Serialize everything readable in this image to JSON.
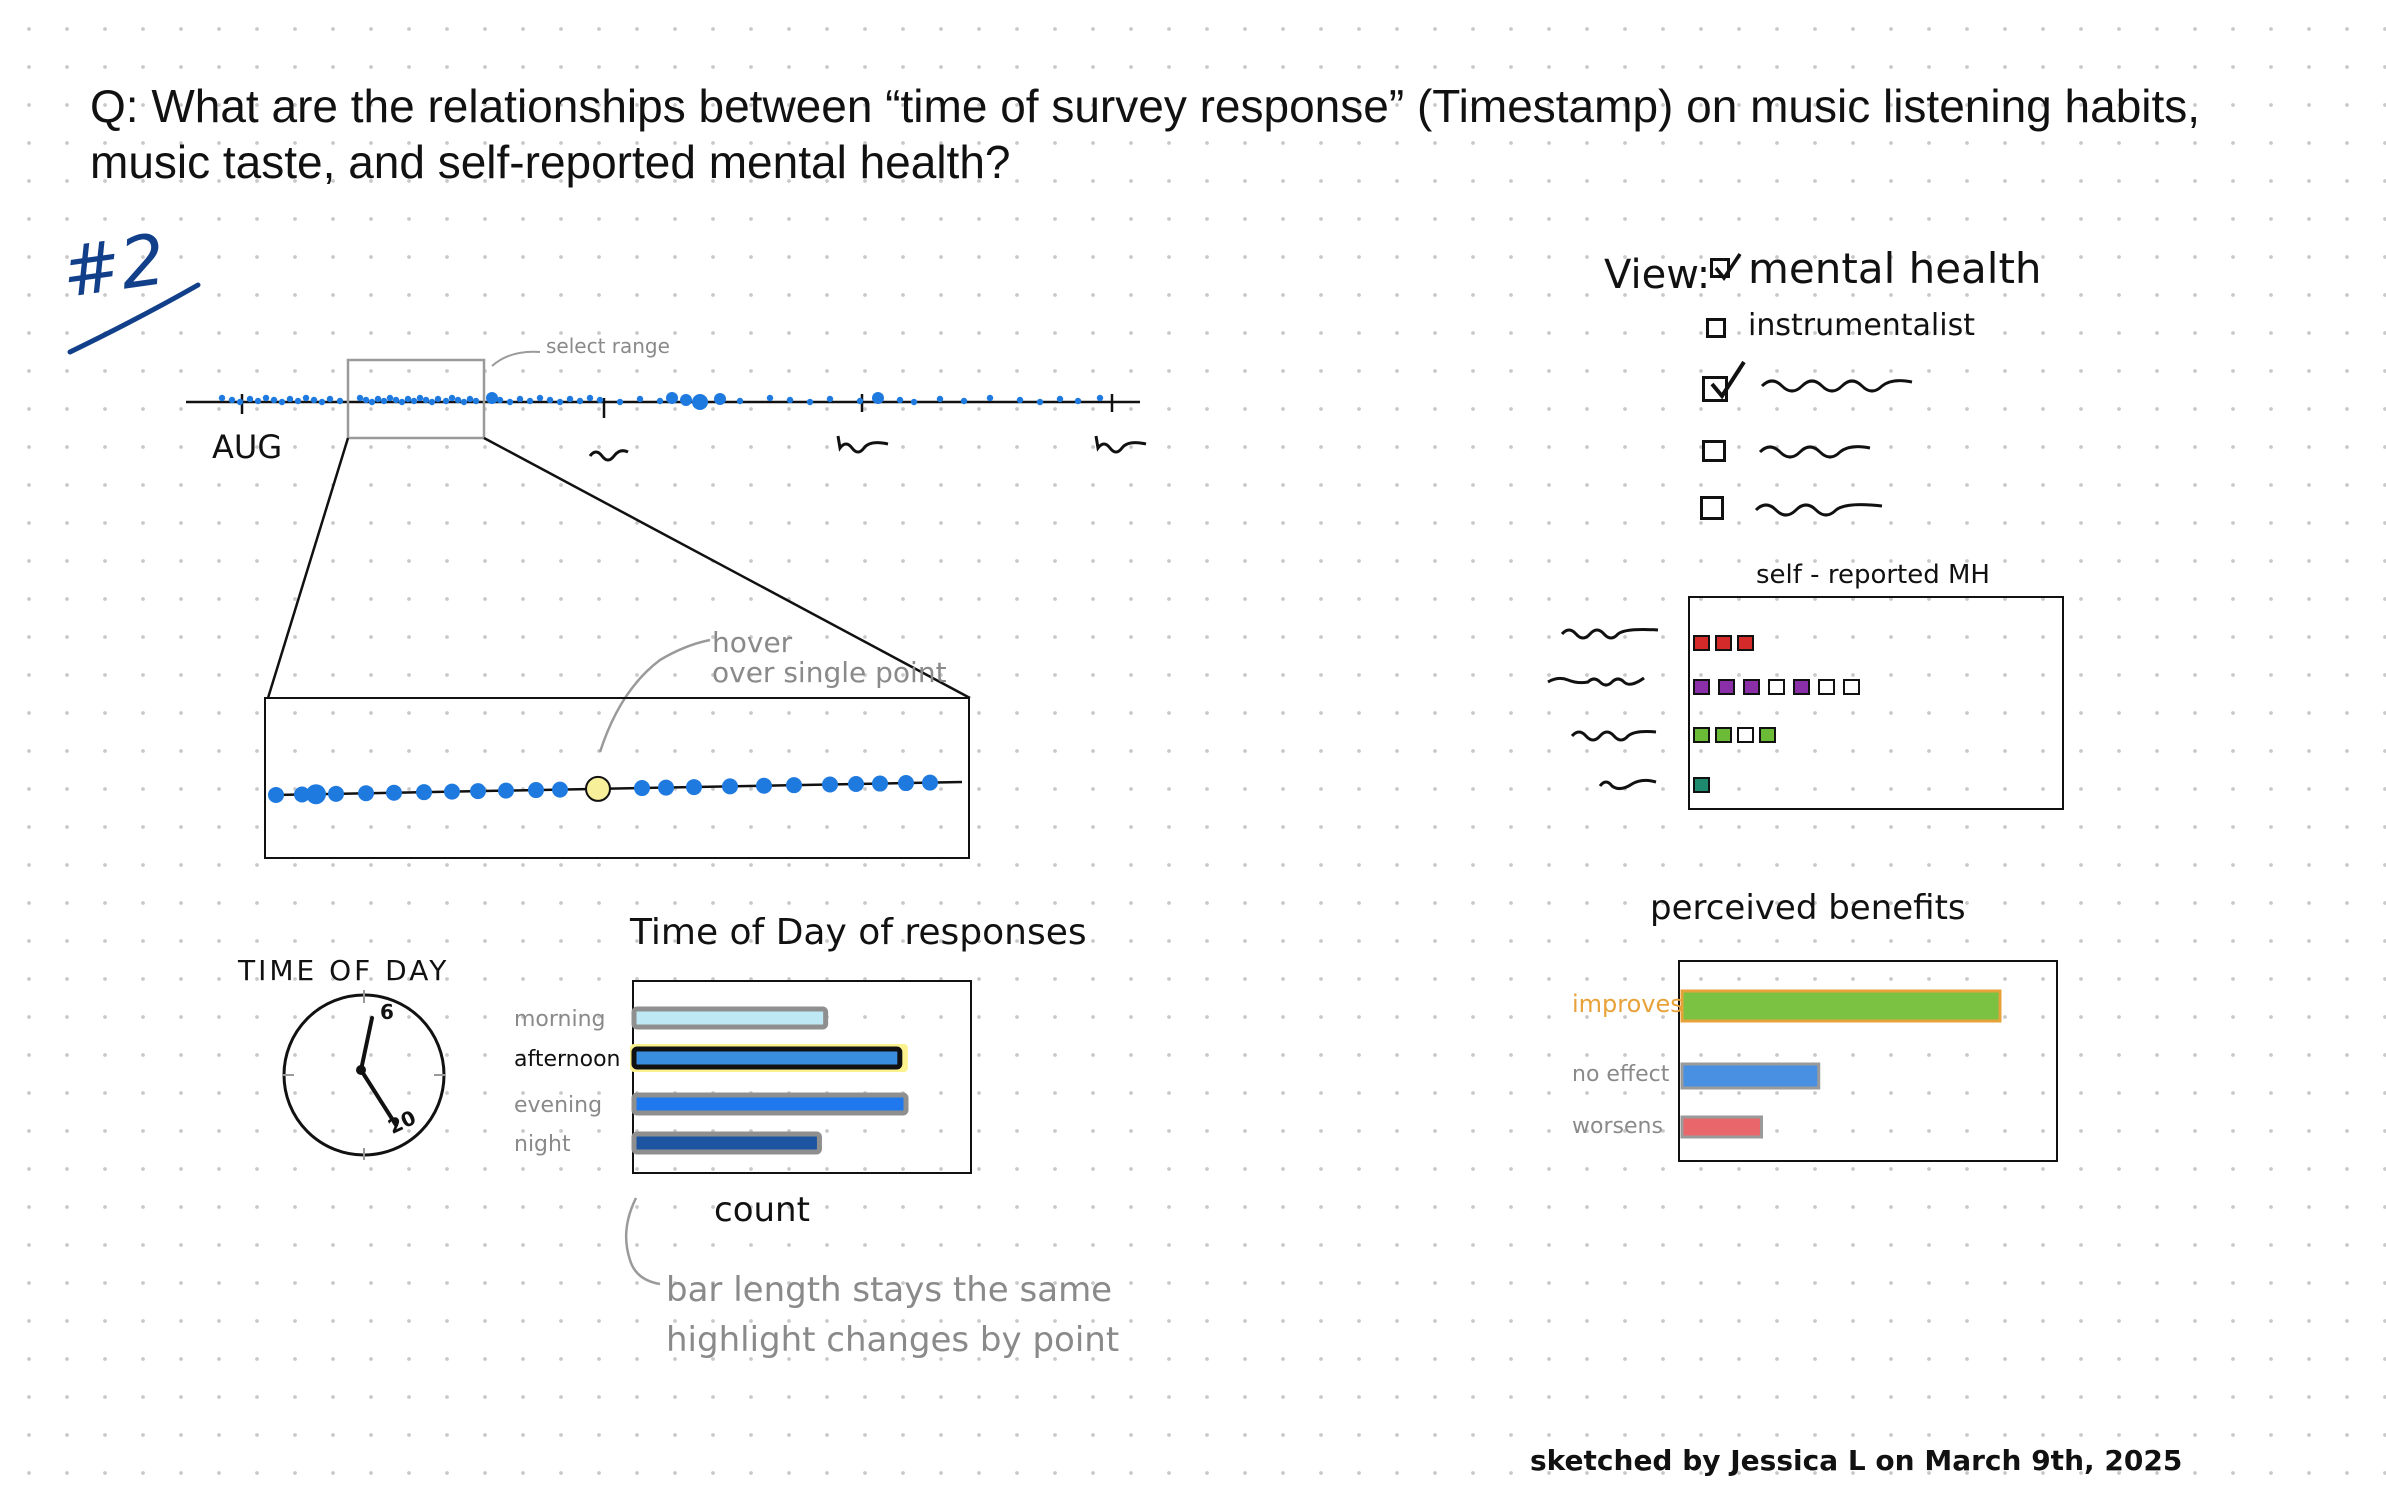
{
  "question": "Q: What are the relationships between “time of survey response” (Timestamp) on music listening habits, music taste, and self-reported mental health?",
  "sketch_number": "#2",
  "timeline": {
    "start_label": "AUG",
    "select_label": "select range"
  },
  "zoom": {
    "hover_label_line1": "hover",
    "hover_label_line2": "over single point"
  },
  "clock": {
    "title": "TIME OF DAY",
    "hour_top": "6",
    "hour_bottom": "20"
  },
  "time_of_day_chart": {
    "title": "Time of Day of responses",
    "x_label": "count",
    "note_line1": "bar length stays the same",
    "note_line2": "highlight changes by point"
  },
  "view_panel": {
    "label": "View:",
    "options": [
      {
        "label": "mental health",
        "checked": true
      },
      {
        "label": "instrumentalist",
        "checked": false
      }
    ],
    "squiggle_options_checked": [
      true,
      false,
      false
    ]
  },
  "mh_chart": {
    "title": "self - reported MH"
  },
  "benefits_chart": {
    "title": "perceived benefits",
    "labels": [
      "improves",
      "no effect",
      "worsens"
    ]
  },
  "signature": "sketched by Jessica L on March 9th, 2025",
  "colors": {
    "point_blue": "#1f7ae0",
    "hover_yellow": "#f7ef99",
    "improves_orange": "#e8a23a",
    "improves_green": "#7cc242",
    "no_effect_blue": "#4a90e2",
    "worsens_red": "#e9666b",
    "mh_red": "#d42a2a",
    "mh_purple": "#8a2fa8",
    "mh_green": "#6bbb36",
    "mh_teal": "#1e8a6e",
    "title_navy": "#123f8a"
  },
  "chart_data": [
    {
      "type": "bar",
      "title": "Time of Day of responses",
      "xlabel": "count",
      "orientation": "horizontal",
      "categories": [
        "morning",
        "afternoon",
        "evening",
        "night"
      ],
      "values": [
        31,
        43,
        44,
        30
      ],
      "highlighted": "afternoon"
    },
    {
      "type": "bar",
      "title": "perceived benefits",
      "orientation": "horizontal",
      "categories": [
        "improves",
        "no effect",
        "worsens"
      ],
      "values": [
        100,
        43,
        25
      ]
    },
    {
      "type": "bar",
      "title": "self - reported MH",
      "orientation": "horizontal",
      "categories": [
        "",
        "",
        "",
        ""
      ],
      "values": [
        3,
        7,
        4,
        1
      ]
    }
  ]
}
